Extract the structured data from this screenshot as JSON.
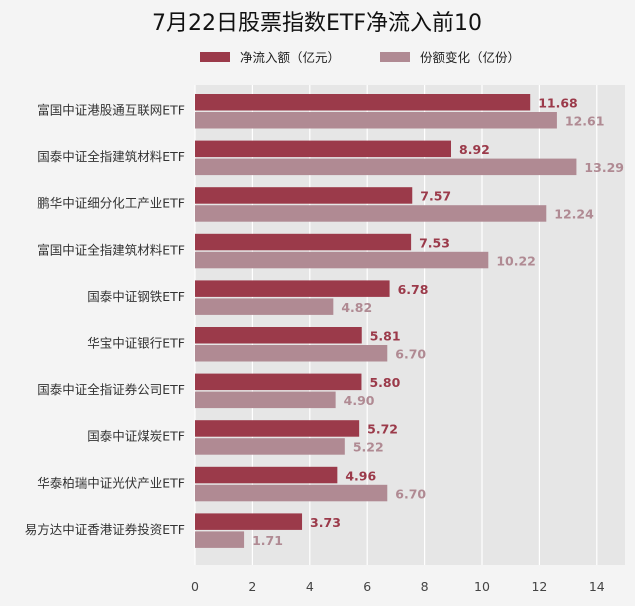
{
  "chart_data": {
    "type": "bar",
    "orientation": "horizontal",
    "title": "7月22日股票指数ETF净流入前10",
    "categories": [
      "富国中证港股通互联网ETF",
      "国泰中证全指建筑材料ETF",
      "鹏华中证细分化工产业ETF",
      "富国中证全指建筑材料ETF",
      "国泰中证钢铁ETF",
      "华宝中证银行ETF",
      "国泰中证全指证券公司ETF",
      "国泰中证煤炭ETF",
      "华泰柏瑞中证光伏产业ETF",
      "易方达中证香港证券投资ETF"
    ],
    "series": [
      {
        "name": "净流入额（亿元）",
        "color": "#9b3a4a",
        "values": [
          11.68,
          8.92,
          7.57,
          7.53,
          6.78,
          5.81,
          5.8,
          5.72,
          4.96,
          3.73
        ],
        "labels": [
          "11.68",
          "8.92",
          "7.57",
          "7.53",
          "6.78",
          "5.81",
          "5.80",
          "5.72",
          "4.96",
          "3.73"
        ]
      },
      {
        "name": "份额变化（亿份）",
        "color": "#b08a93",
        "values": [
          12.61,
          13.29,
          12.24,
          10.22,
          4.82,
          6.7,
          4.9,
          5.22,
          6.7,
          1.71
        ],
        "labels": [
          "12.61",
          "13.29",
          "12.24",
          "10.22",
          "4.82",
          "6.70",
          "4.90",
          "5.22",
          "6.70",
          "1.71"
        ]
      }
    ],
    "x_ticks": [
      "0",
      "2",
      "4",
      "6",
      "8",
      "10",
      "12",
      "14"
    ],
    "xlim": [
      0,
      15
    ],
    "grid": true,
    "legend_position": "top"
  }
}
